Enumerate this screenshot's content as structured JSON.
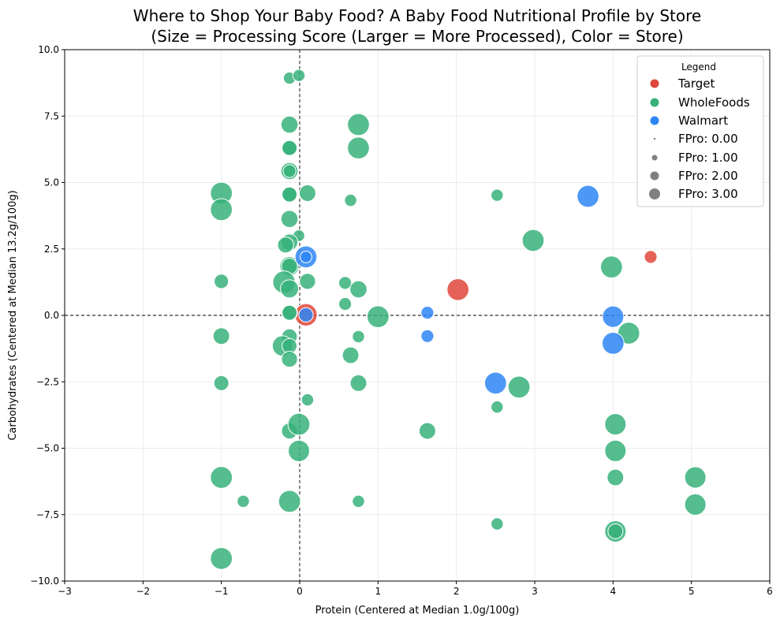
{
  "chart_data": {
    "type": "scatter",
    "title_line1": "Where to Shop Your Baby Food? A Baby Food Nutritional Profile by Store",
    "title_line2": "(Size = Processing Score (Larger = More Processed), Color = Store)",
    "xlabel": "Protein (Centered at Median 1.0g/100g)",
    "ylabel": "Carbohydrates (Centered at Median 13.2g/100g)",
    "xlim": [
      -3,
      6
    ],
    "ylim": [
      -10,
      10
    ],
    "xticks": [
      -3,
      -2,
      -1,
      0,
      1,
      2,
      3,
      4,
      5,
      6
    ],
    "xtick_labels": [
      "−3",
      "−2",
      "−1",
      "0",
      "1",
      "2",
      "3",
      "4",
      "5",
      "6"
    ],
    "yticks": [
      -10,
      -7.5,
      -5,
      -2.5,
      0,
      2.5,
      5,
      7.5,
      10
    ],
    "ytick_labels": [
      "−10.0",
      "−7.5",
      "−5.0",
      "−2.5",
      "0.0",
      "2.5",
      "5.0",
      "7.5",
      "10.0"
    ],
    "grid": true,
    "reference_lines": {
      "x": 0,
      "y": 0
    },
    "legend": {
      "title": "Legend",
      "placement": "top-right",
      "stores": [
        {
          "label": "Target",
          "color": "#e0463b"
        },
        {
          "label": "WholeFoods",
          "color": "#37b27a"
        },
        {
          "label": "Walmart",
          "color": "#2e86f5"
        }
      ],
      "sizes": [
        {
          "label": "FPro: 0.00",
          "value": 0
        },
        {
          "label": "FPro: 1.00",
          "value": 1
        },
        {
          "label": "FPro: 2.00",
          "value": 2
        },
        {
          "label": "FPro: 3.00",
          "value": 3
        }
      ]
    },
    "series": [
      {
        "name": "Target",
        "color": "#e0463b",
        "points": [
          {
            "x": 2.02,
            "y": 0.97,
            "fpro": 2.9
          },
          {
            "x": 4.48,
            "y": 2.2,
            "fpro": 1.2
          },
          {
            "x": 0.08,
            "y": 0.02,
            "fpro": 3.0
          }
        ]
      },
      {
        "name": "WholeFoods",
        "color": "#37b27a",
        "points": [
          {
            "x": -0.13,
            "y": 8.93,
            "fpro": 1.1
          },
          {
            "x": -0.01,
            "y": 9.03,
            "fpro": 1.1
          },
          {
            "x": -0.13,
            "y": 7.18,
            "fpro": 2.0
          },
          {
            "x": 0.75,
            "y": 7.18,
            "fpro": 2.9
          },
          {
            "x": -0.13,
            "y": 6.3,
            "fpro": 1.8
          },
          {
            "x": -0.13,
            "y": 6.3,
            "fpro": 1.6
          },
          {
            "x": 0.75,
            "y": 6.3,
            "fpro": 2.9
          },
          {
            "x": -0.13,
            "y": 5.43,
            "fpro": 2.0
          },
          {
            "x": -0.13,
            "y": 5.43,
            "fpro": 1.2
          },
          {
            "x": -1.0,
            "y": 4.6,
            "fpro": 2.9
          },
          {
            "x": -0.13,
            "y": 4.55,
            "fpro": 1.8
          },
          {
            "x": -0.13,
            "y": 4.55,
            "fpro": 1.6
          },
          {
            "x": 0.1,
            "y": 4.6,
            "fpro": 1.9
          },
          {
            "x": 0.65,
            "y": 4.33,
            "fpro": 1.1
          },
          {
            "x": 2.52,
            "y": 4.52,
            "fpro": 1.1
          },
          {
            "x": -1.0,
            "y": 3.98,
            "fpro": 2.9
          },
          {
            "x": -0.13,
            "y": 3.63,
            "fpro": 2.0
          },
          {
            "x": -0.01,
            "y": 3.0,
            "fpro": 1.0
          },
          {
            "x": -0.13,
            "y": 2.75,
            "fpro": 1.9
          },
          {
            "x": -0.18,
            "y": 2.65,
            "fpro": 1.8
          },
          {
            "x": 2.98,
            "y": 2.82,
            "fpro": 2.9
          },
          {
            "x": 3.98,
            "y": 1.82,
            "fpro": 2.9
          },
          {
            "x": -0.13,
            "y": 1.85,
            "fpro": 2.4
          },
          {
            "x": -0.13,
            "y": 1.85,
            "fpro": 1.8
          },
          {
            "x": -1.0,
            "y": 1.28,
            "fpro": 1.5
          },
          {
            "x": -0.2,
            "y": 1.25,
            "fpro": 3.0
          },
          {
            "x": -0.13,
            "y": 1.0,
            "fpro": 2.2
          },
          {
            "x": 0.1,
            "y": 1.28,
            "fpro": 1.8
          },
          {
            "x": 0.58,
            "y": 1.22,
            "fpro": 1.2
          },
          {
            "x": 0.75,
            "y": 0.98,
            "fpro": 2.0
          },
          {
            "x": 0.58,
            "y": 0.43,
            "fpro": 1.2
          },
          {
            "x": -0.13,
            "y": 0.1,
            "fpro": 1.8
          },
          {
            "x": -0.13,
            "y": 0.1,
            "fpro": 1.6
          },
          {
            "x": 1.0,
            "y": -0.05,
            "fpro": 2.9
          },
          {
            "x": 4.2,
            "y": -0.67,
            "fpro": 2.9
          },
          {
            "x": -1.0,
            "y": -0.78,
            "fpro": 1.9
          },
          {
            "x": -0.13,
            "y": -0.8,
            "fpro": 1.7
          },
          {
            "x": 0.75,
            "y": -0.8,
            "fpro": 1.1
          },
          {
            "x": -0.22,
            "y": -1.15,
            "fpro": 2.6
          },
          {
            "x": -0.13,
            "y": -1.15,
            "fpro": 1.6
          },
          {
            "x": -0.13,
            "y": -1.65,
            "fpro": 1.8
          },
          {
            "x": 0.65,
            "y": -1.5,
            "fpro": 1.9
          },
          {
            "x": -1.0,
            "y": -2.55,
            "fpro": 1.6
          },
          {
            "x": 0.75,
            "y": -2.55,
            "fpro": 1.9
          },
          {
            "x": 2.8,
            "y": -2.7,
            "fpro": 2.9
          },
          {
            "x": 0.1,
            "y": -3.18,
            "fpro": 1.1
          },
          {
            "x": 2.52,
            "y": -3.45,
            "fpro": 1.1
          },
          {
            "x": -0.13,
            "y": -4.35,
            "fpro": 1.8
          },
          {
            "x": -0.01,
            "y": -4.1,
            "fpro": 2.9
          },
          {
            "x": 1.63,
            "y": -4.35,
            "fpro": 1.9
          },
          {
            "x": 4.03,
            "y": -4.1,
            "fpro": 2.8
          },
          {
            "x": -0.01,
            "y": -5.1,
            "fpro": 2.8
          },
          {
            "x": 4.03,
            "y": -5.1,
            "fpro": 2.8
          },
          {
            "x": -1.0,
            "y": -6.1,
            "fpro": 2.9
          },
          {
            "x": 4.03,
            "y": -6.1,
            "fpro": 1.9
          },
          {
            "x": 5.05,
            "y": -6.1,
            "fpro": 2.8
          },
          {
            "x": -0.72,
            "y": -7.0,
            "fpro": 1.1
          },
          {
            "x": -0.13,
            "y": -7.0,
            "fpro": 2.9
          },
          {
            "x": 0.75,
            "y": -7.0,
            "fpro": 1.1
          },
          {
            "x": 5.05,
            "y": -7.12,
            "fpro": 2.8
          },
          {
            "x": 2.52,
            "y": -7.85,
            "fpro": 1.1
          },
          {
            "x": 4.03,
            "y": -8.13,
            "fpro": 2.8
          },
          {
            "x": 4.03,
            "y": -8.13,
            "fpro": 1.6
          },
          {
            "x": -1.0,
            "y": -9.15,
            "fpro": 2.9
          }
        ]
      },
      {
        "name": "Walmart",
        "color": "#2e86f5",
        "points": [
          {
            "x": 3.68,
            "y": 4.48,
            "fpro": 2.9
          },
          {
            "x": 0.08,
            "y": 2.2,
            "fpro": 2.9
          },
          {
            "x": 0.08,
            "y": 2.2,
            "fpro": 1.0
          },
          {
            "x": 0.08,
            "y": 0.02,
            "fpro": 1.5
          },
          {
            "x": 1.63,
            "y": 0.1,
            "fpro": 1.2
          },
          {
            "x": 4.0,
            "y": -0.05,
            "fpro": 2.8
          },
          {
            "x": 1.63,
            "y": -0.78,
            "fpro": 1.2
          },
          {
            "x": 4.0,
            "y": -1.05,
            "fpro": 2.9
          },
          {
            "x": 2.5,
            "y": -2.55,
            "fpro": 2.9
          }
        ]
      }
    ]
  }
}
